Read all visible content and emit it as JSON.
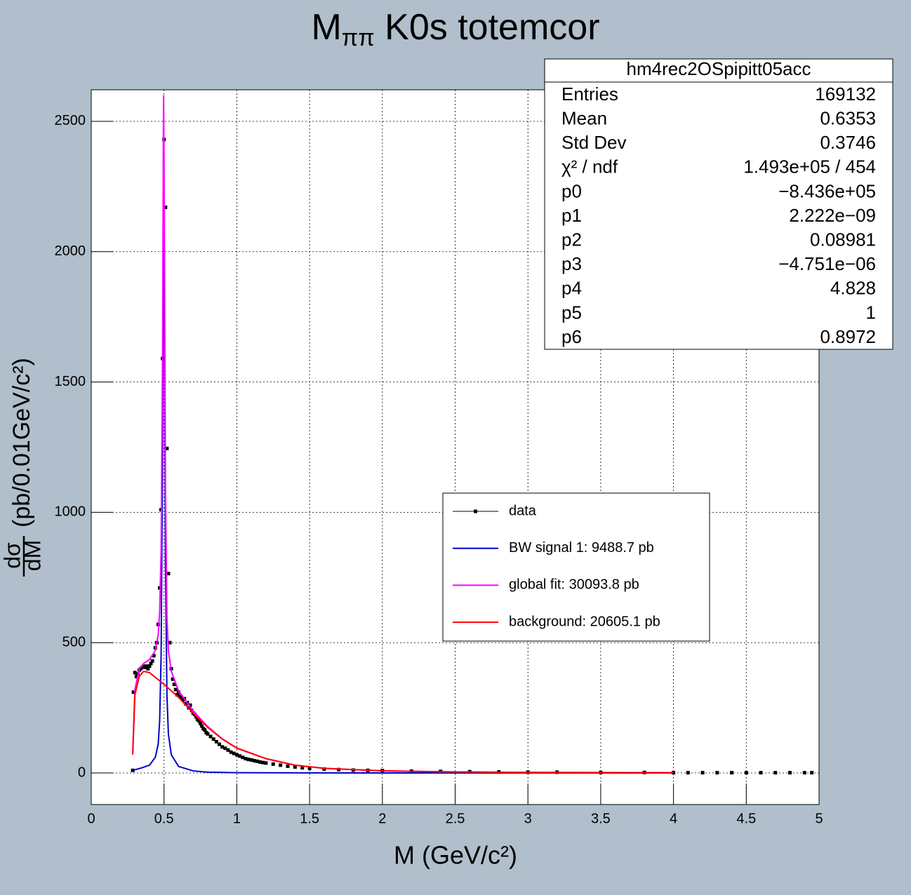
{
  "chart_data": {
    "type": "line",
    "title": {
      "main": "M",
      "sub": "ππ",
      "rest": " K0s totemcor"
    },
    "x_label": "M (GeV/c²)",
    "y_label": {
      "numerator": "dσ",
      "denominator": "dM",
      "unit": "(pb/0.01GeV/c²)"
    },
    "xlim": [
      0,
      5
    ],
    "xticks": [
      0,
      0.5,
      1,
      1.5,
      2,
      2.5,
      3,
      3.5,
      4,
      4.5,
      5
    ],
    "ylim": [
      -121,
      2621
    ],
    "yticks": [
      0,
      500,
      1000,
      1500,
      2000,
      2500
    ],
    "grid": true,
    "series": [
      {
        "name": "data",
        "color": "#000000",
        "style": "markers",
        "x": [
          0.285,
          0.29,
          0.3,
          0.31,
          0.32,
          0.33,
          0.34,
          0.35,
          0.36,
          0.37,
          0.38,
          0.39,
          0.4,
          0.41,
          0.42,
          0.43,
          0.44,
          0.45,
          0.46,
          0.47,
          0.48,
          0.49,
          0.5,
          0.51,
          0.52,
          0.53,
          0.54,
          0.55,
          0.56,
          0.57,
          0.58,
          0.59,
          0.6,
          0.61,
          0.62,
          0.63,
          0.64,
          0.65,
          0.66,
          0.67,
          0.68,
          0.69,
          0.7,
          0.71,
          0.72,
          0.73,
          0.74,
          0.75,
          0.76,
          0.77,
          0.78,
          0.79,
          0.8,
          0.82,
          0.84,
          0.86,
          0.88,
          0.9,
          0.92,
          0.94,
          0.96,
          0.98,
          1.0,
          1.02,
          1.04,
          1.06,
          1.08,
          1.1,
          1.12,
          1.14,
          1.16,
          1.18,
          1.2,
          1.25,
          1.3,
          1.35,
          1.4,
          1.45,
          1.5,
          1.6,
          1.7,
          1.8,
          1.9,
          2.0,
          2.2,
          2.4,
          2.6,
          2.8,
          3.0,
          3.2,
          3.5,
          3.8,
          4.0,
          4.1,
          4.2,
          4.3,
          4.4,
          4.5,
          4.6,
          4.7,
          4.8,
          4.9,
          4.95
        ],
        "values": [
          10,
          310,
          385,
          370,
          380,
          395,
          400,
          405,
          410,
          405,
          410,
          400,
          410,
          420,
          430,
          450,
          480,
          500,
          570,
          710,
          1010,
          1590,
          2430,
          2170,
          1245,
          765,
          500,
          400,
          360,
          340,
          320,
          300,
          310,
          295,
          290,
          280,
          285,
          265,
          270,
          250,
          260,
          240,
          230,
          225,
          215,
          205,
          200,
          190,
          180,
          170,
          165,
          155,
          150,
          140,
          130,
          120,
          110,
          100,
          95,
          88,
          80,
          75,
          70,
          65,
          60,
          55,
          52,
          50,
          47,
          45,
          42,
          40,
          38,
          34,
          30,
          26,
          23,
          20,
          18,
          15,
          13,
          11,
          10,
          9,
          7,
          6,
          5,
          4,
          3,
          3,
          2,
          2,
          1,
          1,
          1,
          1,
          1,
          1,
          1,
          1,
          1,
          1,
          1
        ]
      },
      {
        "name": "BW signal 1: 9488.7 pb",
        "color": "#0000cc",
        "style": "line",
        "x": [
          0.285,
          0.35,
          0.4,
          0.44,
          0.46,
          0.47,
          0.48,
          0.49,
          0.495,
          0.497,
          0.5,
          0.505,
          0.51,
          0.52,
          0.53,
          0.55,
          0.6,
          0.7,
          0.8,
          1.0,
          2.0,
          4.0
        ],
        "values": [
          10,
          20,
          30,
          60,
          110,
          200,
          450,
          1200,
          2000,
          2270,
          2100,
          1400,
          800,
          300,
          150,
          70,
          25,
          8,
          3,
          1,
          0,
          0
        ]
      },
      {
        "name": "global fit: 30093.8 pb",
        "color": "#ff00ff",
        "style": "line",
        "x": [
          0.285,
          0.3,
          0.33,
          0.36,
          0.4,
          0.44,
          0.46,
          0.47,
          0.48,
          0.49,
          0.495,
          0.497,
          0.5,
          0.505,
          0.51,
          0.52,
          0.53,
          0.55,
          0.6,
          0.7,
          0.8,
          0.9,
          1.0,
          1.2,
          1.4,
          1.6,
          2.0,
          2.5,
          3.0,
          4.0
        ],
        "values": [
          80,
          320,
          400,
          420,
          435,
          470,
          530,
          620,
          850,
          1600,
          2400,
          2600,
          2400,
          1750,
          1100,
          600,
          470,
          390,
          315,
          238,
          178,
          131,
          96,
          55,
          30,
          18,
          8,
          4,
          2,
          1
        ]
      },
      {
        "name": "background: 20605.1 pb",
        "color": "#ff0000",
        "style": "line",
        "x": [
          0.285,
          0.3,
          0.33,
          0.36,
          0.4,
          0.5,
          0.6,
          0.7,
          0.8,
          0.9,
          1.0,
          1.2,
          1.4,
          1.6,
          2.0,
          2.5,
          3.0,
          4.0
        ],
        "values": [
          70,
          300,
          370,
          390,
          385,
          340,
          290,
          230,
          175,
          130,
          95,
          55,
          30,
          18,
          8,
          4,
          2,
          1
        ]
      }
    ],
    "stats": {
      "title": "hm4rec2OSpipitt05acc",
      "rows": [
        [
          "Entries",
          "169132"
        ],
        [
          "Mean",
          "0.6353"
        ],
        [
          "Std Dev",
          "0.3746"
        ],
        [
          "χ² / ndf",
          "1.493e+05 / 454"
        ],
        [
          "p0",
          "−8.436e+05"
        ],
        [
          "p1",
          "2.222e−09"
        ],
        [
          "p2",
          "0.08981"
        ],
        [
          "p3",
          "−4.751e−06"
        ],
        [
          "p4",
          "4.828"
        ],
        [
          "p5",
          "1"
        ],
        [
          "p6",
          "0.8972"
        ]
      ]
    }
  }
}
